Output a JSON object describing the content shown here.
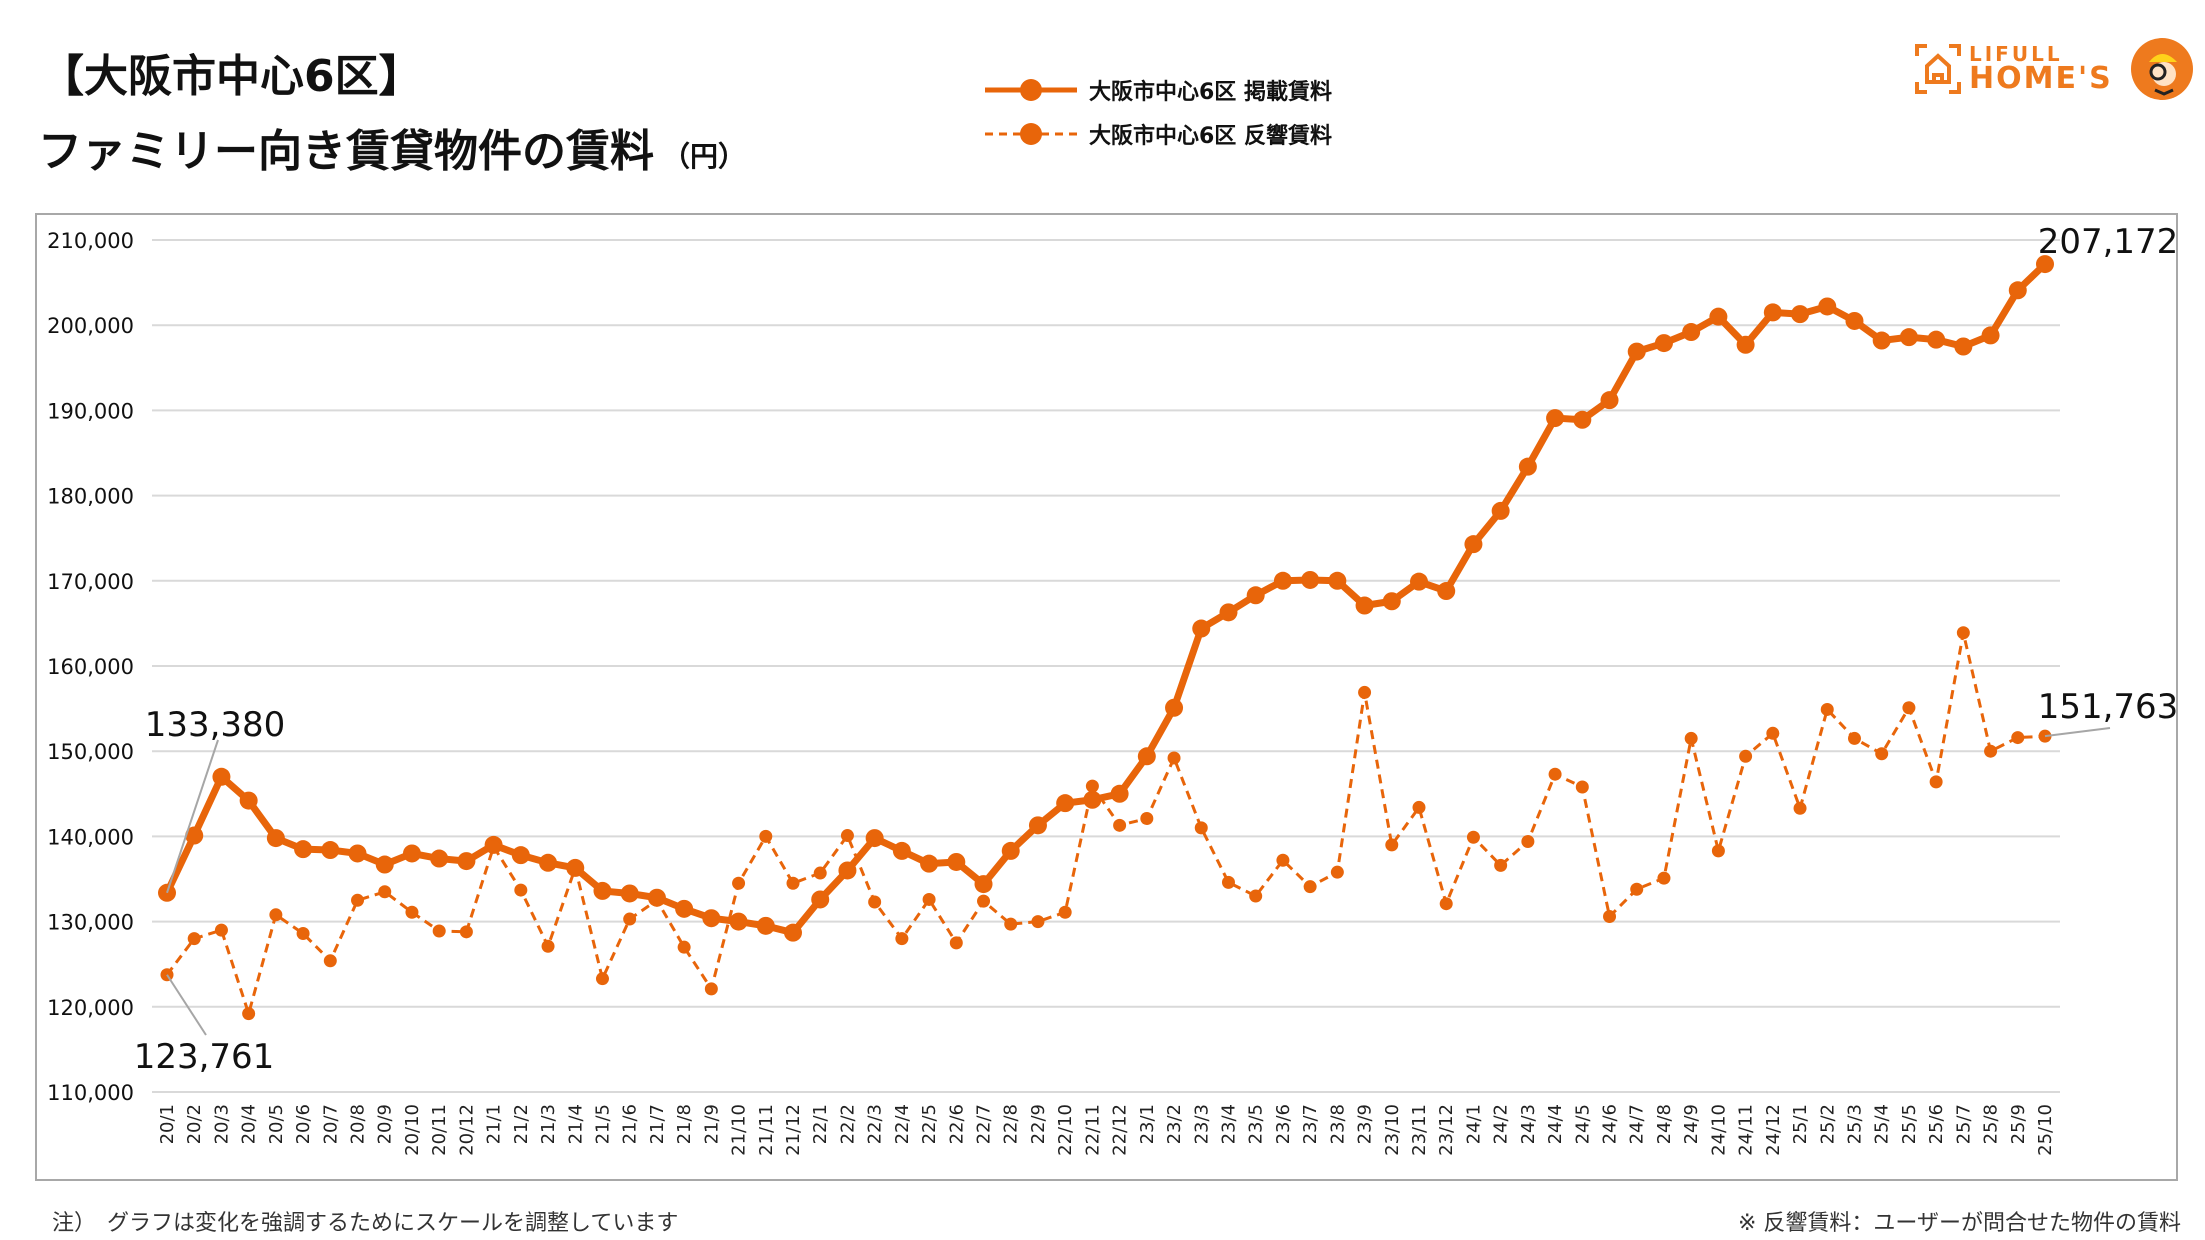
{
  "header": {
    "title_line1": "【大阪市中心6区】",
    "title_line2": "ファミリー向き賃貸物件の賃料",
    "unit": "（円）"
  },
  "logo": {
    "line1": "LIFULL",
    "line2": "HOME'S"
  },
  "footnotes": {
    "left": "注）　グラフは変化を強調するためにスケールを調整しています",
    "right": "※ 反響賃料：ユーザーが問合せた物件の賃料"
  },
  "colors": {
    "series": "#e8650a",
    "grid": "#d9d9d9",
    "leader": "#a6a6a6"
  },
  "chart_data": {
    "type": "line",
    "title": "【大阪市中心6区】ファミリー向き賃貸物件の賃料（円）",
    "xlabel": "",
    "ylabel": "",
    "ylim": [
      110000,
      210000
    ],
    "yticks": [
      110000,
      120000,
      130000,
      140000,
      150000,
      160000,
      170000,
      180000,
      190000,
      200000,
      210000
    ],
    "ytick_labels": [
      "110,000",
      "120,000",
      "130,000",
      "140,000",
      "150,000",
      "160,000",
      "170,000",
      "180,000",
      "190,000",
      "200,000",
      "210,000"
    ],
    "grid": true,
    "legend_position": "top-center",
    "categories": [
      "20/1",
      "20/2",
      "20/3",
      "20/4",
      "20/5",
      "20/6",
      "20/7",
      "20/8",
      "20/9",
      "20/10",
      "20/11",
      "20/12",
      "21/1",
      "21/2",
      "21/3",
      "21/4",
      "21/5",
      "21/6",
      "21/7",
      "21/8",
      "21/9",
      "21/10",
      "21/11",
      "21/12",
      "22/1",
      "22/2",
      "22/3",
      "22/4",
      "22/5",
      "22/6",
      "22/7",
      "22/8",
      "22/9",
      "22/10",
      "22/11",
      "22/12",
      "23/1",
      "23/2",
      "23/3",
      "23/4",
      "23/5",
      "23/6",
      "23/7",
      "23/8",
      "23/9",
      "23/10",
      "23/11",
      "23/12",
      "24/1",
      "24/2",
      "24/3",
      "24/4",
      "24/5",
      "24/6",
      "24/7",
      "24/8",
      "24/9",
      "24/10",
      "24/11",
      "24/12",
      "25/1",
      "25/2",
      "25/3",
      "25/4",
      "25/5",
      "25/6",
      "25/7",
      "25/8",
      "25/9",
      "25/10"
    ],
    "series": [
      {
        "name": "大阪市中心6区 掲載賃料",
        "style": "solid",
        "values": [
          133380,
          140100,
          147000,
          144200,
          139800,
          138500,
          138400,
          138000,
          136700,
          138000,
          137400,
          137100,
          139000,
          137800,
          136900,
          136300,
          133600,
          133300,
          132800,
          131500,
          130400,
          130000,
          129500,
          128700,
          132600,
          136000,
          139800,
          138300,
          136800,
          137000,
          134400,
          138300,
          141300,
          143900,
          144300,
          145000,
          149400,
          155100,
          164400,
          166300,
          168300,
          170000,
          170100,
          170000,
          167100,
          167600,
          169900,
          168800,
          174300,
          178200,
          183400,
          189100,
          188900,
          191200,
          196900,
          197900,
          199200,
          201000,
          197700,
          201500,
          201300,
          202200,
          200500,
          198200,
          198600,
          198300,
          197500,
          198800,
          204100,
          207172
        ]
      },
      {
        "name": "大阪市中心6区 反響賃料",
        "style": "dashed",
        "values": [
          123761,
          128000,
          129000,
          119200,
          130800,
          128600,
          125400,
          132500,
          133500,
          131100,
          128900,
          128800,
          138800,
          133700,
          127100,
          136300,
          123300,
          130300,
          132500,
          127000,
          122100,
          134500,
          140000,
          134500,
          135700,
          140100,
          132300,
          128000,
          132600,
          127500,
          132400,
          129700,
          130000,
          131100,
          145900,
          141300,
          142100,
          149200,
          141000,
          134600,
          133000,
          137200,
          134100,
          135800,
          156900,
          139000,
          143400,
          132100,
          139900,
          136600,
          139400,
          147300,
          145800,
          130600,
          133800,
          135100,
          151500,
          138300,
          149400,
          152100,
          143300,
          154900,
          151500,
          149700,
          155100,
          146400,
          163900,
          150000,
          151600,
          151763
        ]
      }
    ],
    "annotations": [
      {
        "series": 0,
        "index": 0,
        "text": "133,380"
      },
      {
        "series": 1,
        "index": 0,
        "text": "123,761"
      },
      {
        "series": 0,
        "index": 69,
        "text": "207,172"
      },
      {
        "series": 1,
        "index": 69,
        "text": "151,763"
      }
    ]
  }
}
